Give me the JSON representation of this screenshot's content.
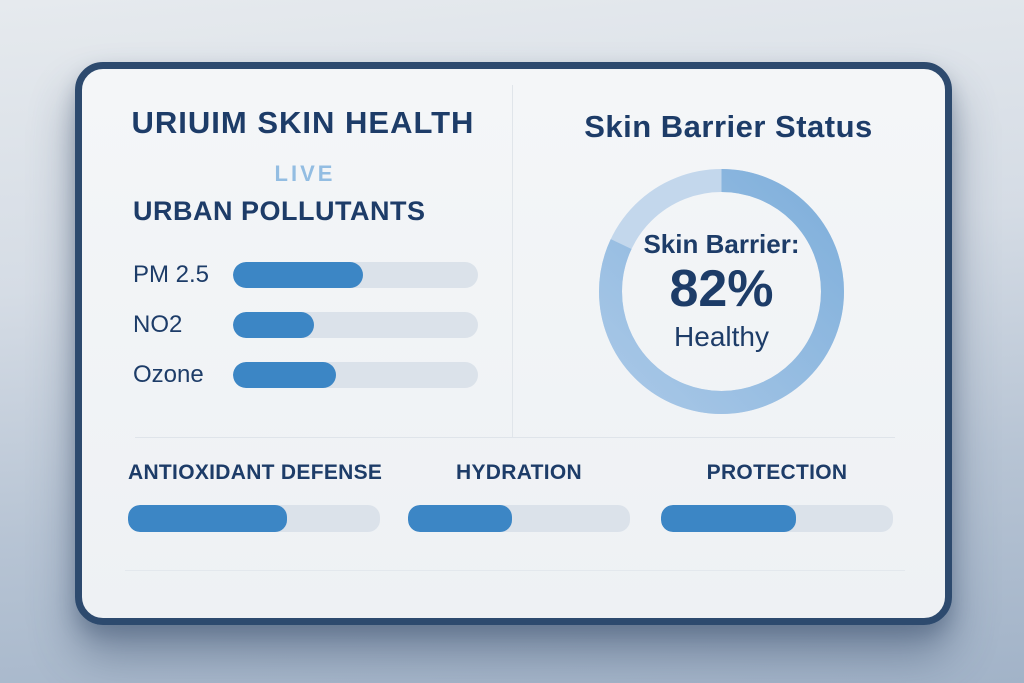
{
  "card": {
    "left_panel": {
      "title": "URIUIM SKIN HEALTH",
      "live_label": "LIVE",
      "section_title": "URBAN POLLUTANTS",
      "pollutants": [
        {
          "label": "PM 2.5",
          "value": 53
        },
        {
          "label": "NO2",
          "value": 33
        },
        {
          "label": "Ozone",
          "value": 42
        }
      ]
    },
    "right_panel": {
      "title": "Skin Barrier Status",
      "gauge": {
        "label": "Skin Barrier:",
        "value": 82,
        "value_text": "82%",
        "status": "Healthy"
      }
    },
    "metrics": [
      {
        "label": "ANTIOXIDANT DEFENSE",
        "value": 63
      },
      {
        "label": "HYDRATION",
        "value": 47
      },
      {
        "label": "PROTECTION",
        "value": 58
      }
    ]
  },
  "colors": {
    "accent_blue": "#3c86c5",
    "bar_track": "#dbe2ea",
    "navy_text": "#1d3c68",
    "live_blue": "#93bde2",
    "ring_progress_start": "#a9c8e7",
    "ring_progress_end": "#7fafdb",
    "ring_remainder": "#c3d7ec",
    "card_border": "#2d4a6e",
    "card_background": "#f3f5f7"
  },
  "chart_data": [
    {
      "type": "bar",
      "title": "URBAN POLLUTANTS",
      "categories": [
        "PM 2.5",
        "NO2",
        "Ozone"
      ],
      "values": [
        53,
        33,
        42
      ],
      "xlabel": "",
      "ylabel": "",
      "xlim": [
        0,
        100
      ],
      "orientation": "horizontal",
      "unit": "percent of track filled (estimated)"
    },
    {
      "type": "pie",
      "subtype": "donut-gauge",
      "title": "Skin Barrier Status",
      "labels": [
        "Skin Barrier Healthy",
        "Remaining"
      ],
      "values": [
        82,
        18
      ],
      "center_text": [
        "Skin Barrier:",
        "82%",
        "Healthy"
      ],
      "start_angle_deg": 0,
      "direction": "clockwise"
    },
    {
      "type": "bar",
      "title": "",
      "categories": [
        "ANTIOXIDANT DEFENSE",
        "HYDRATION",
        "PROTECTION"
      ],
      "values": [
        63,
        47,
        58
      ],
      "xlabel": "",
      "ylabel": "",
      "xlim": [
        0,
        100
      ],
      "orientation": "horizontal",
      "unit": "percent of track filled (estimated)"
    }
  ]
}
